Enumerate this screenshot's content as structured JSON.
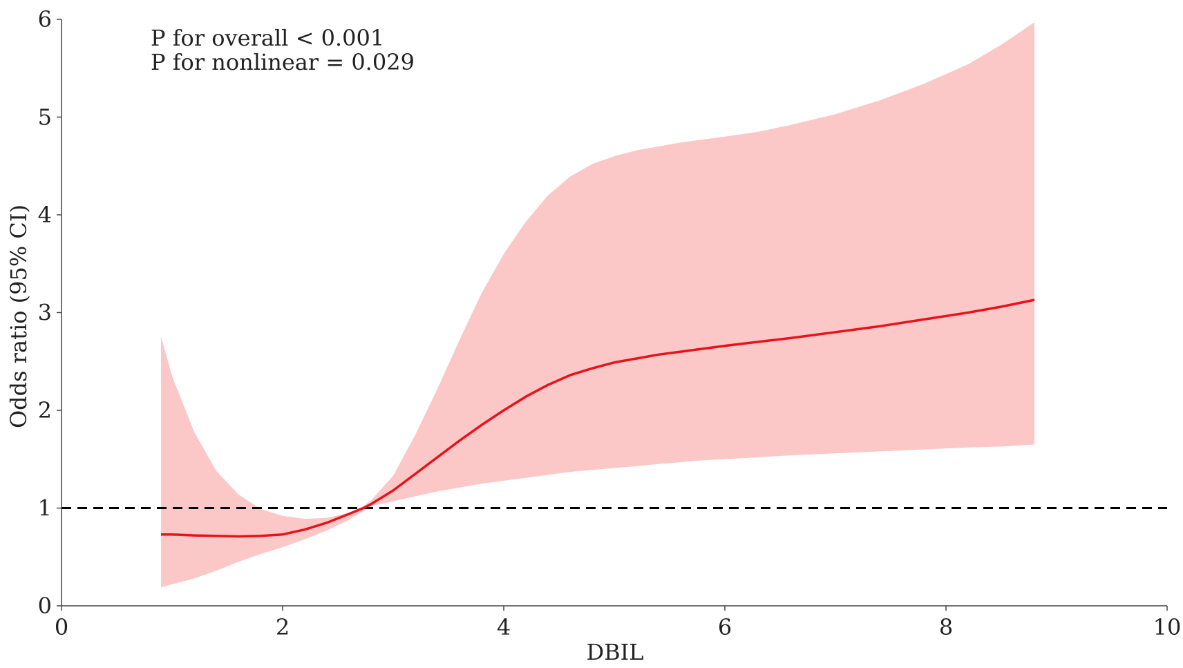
{
  "chart_data": {
    "type": "line",
    "xlabel": "DBIL",
    "ylabel": "Odds ratio (95% CI)",
    "xlim": [
      0,
      10
    ],
    "ylim": [
      0,
      6
    ],
    "xticks": [
      0,
      2,
      4,
      6,
      8,
      10
    ],
    "yticks": [
      0,
      1,
      2,
      3,
      4,
      5,
      6
    ],
    "grid": false,
    "reference_line": {
      "y": 1,
      "style": "dashed",
      "color": "#000000"
    },
    "annotations": [
      "P for overall < 0.001",
      "P for nonlinear = 0.029"
    ],
    "line_color": "#e8121b",
    "band_color": "#fcc7c7",
    "series": [
      {
        "x": [
          0.9,
          1.0,
          1.2,
          1.4,
          1.6,
          1.8,
          2.0,
          2.2,
          2.4,
          2.6,
          2.73,
          2.8,
          3.0,
          3.2,
          3.4,
          3.6,
          3.8,
          4.0,
          4.2,
          4.4,
          4.6,
          4.8,
          5.0,
          5.2,
          5.4,
          5.6,
          5.8,
          6.0,
          6.3,
          6.6,
          7.0,
          7.4,
          7.8,
          8.2,
          8.5,
          8.8
        ],
        "y": [
          0.73,
          0.73,
          0.72,
          0.715,
          0.71,
          0.715,
          0.73,
          0.78,
          0.85,
          0.94,
          1.0,
          1.04,
          1.18,
          1.35,
          1.52,
          1.69,
          1.85,
          2.0,
          2.14,
          2.26,
          2.36,
          2.43,
          2.49,
          2.53,
          2.57,
          2.6,
          2.63,
          2.66,
          2.7,
          2.74,
          2.8,
          2.86,
          2.93,
          3.0,
          3.06,
          3.13
        ],
        "lower": [
          0.19,
          0.22,
          0.28,
          0.36,
          0.45,
          0.53,
          0.6,
          0.68,
          0.77,
          0.88,
          0.97,
          1.02,
          1.07,
          1.12,
          1.17,
          1.21,
          1.25,
          1.28,
          1.31,
          1.34,
          1.37,
          1.39,
          1.41,
          1.43,
          1.45,
          1.47,
          1.49,
          1.5,
          1.52,
          1.54,
          1.56,
          1.58,
          1.6,
          1.62,
          1.63,
          1.65
        ],
        "upper": [
          2.76,
          2.35,
          1.78,
          1.38,
          1.14,
          0.99,
          0.92,
          0.89,
          0.9,
          0.95,
          1.02,
          1.08,
          1.33,
          1.75,
          2.22,
          2.72,
          3.2,
          3.6,
          3.93,
          4.2,
          4.39,
          4.52,
          4.6,
          4.66,
          4.7,
          4.74,
          4.77,
          4.8,
          4.85,
          4.92,
          5.03,
          5.17,
          5.34,
          5.54,
          5.74,
          5.97
        ]
      }
    ]
  }
}
